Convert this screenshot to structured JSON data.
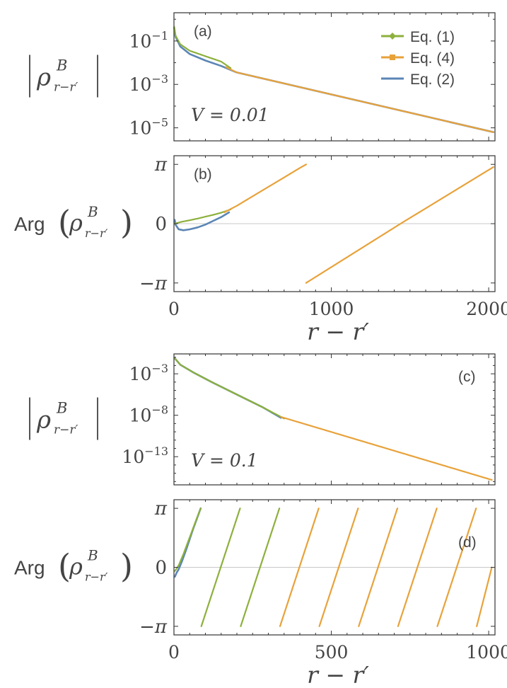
{
  "colors": {
    "eq1": "#8db03c",
    "eq4": "#e8a23a",
    "eq2": "#5b86b5",
    "frame": "#333333",
    "text": "#444444",
    "zero_line": "#c8c8c8"
  },
  "chart_data": [
    {
      "id": "a",
      "panel_label": "(a)",
      "type": "line",
      "ylabel_main": "ρ",
      "ylabel_sup": "B",
      "ylabel_sub": "r−r′",
      "annotation": "V = 0.01",
      "yscale": "log",
      "xlim": [
        0,
        2040
      ],
      "ylog_range": [
        -5.6,
        0.3
      ],
      "ytick_exponents": [
        -1,
        -3,
        -5
      ],
      "ytick_labels": [
        "10−1",
        "10−3",
        "10−5"
      ],
      "legend": {
        "placement": "top-right",
        "entries": [
          "Eq. (1)",
          "Eq. (4)",
          "Eq. (2)"
        ]
      },
      "series": [
        {
          "name": "Eq. (2)",
          "x": [
            2,
            10,
            40,
            100,
            200,
            300,
            400,
            2030
          ],
          "y_log10": [
            -0.4,
            -0.8,
            -1.25,
            -1.6,
            -1.9,
            -2.15,
            -2.45,
            -5.2
          ]
        },
        {
          "name": "Eq. (1)",
          "x": [
            2,
            10,
            40,
            100,
            200,
            300,
            360
          ],
          "y_log10": [
            -0.35,
            -0.75,
            -1.15,
            -1.45,
            -1.7,
            -1.95,
            -2.25
          ]
        },
        {
          "name": "Eq. (4)",
          "x": [
            330,
            400,
            2030
          ],
          "y_log10": [
            -2.2,
            -2.45,
            -5.2
          ]
        }
      ]
    },
    {
      "id": "b",
      "panel_label": "(b)",
      "type": "line",
      "ylabel": "Arg",
      "xlabel": "r − r′",
      "xlim": [
        0,
        2040
      ],
      "ylim": [
        -3.6,
        3.6
      ],
      "xticks": [
        0,
        1000,
        2000
      ],
      "xtick_labels": [
        "0",
        "1000",
        "2000"
      ],
      "ytick_labels": [
        "π",
        "0",
        "−π"
      ],
      "series": [
        {
          "name": "Eq. (2)",
          "x": [
            5,
            10,
            30,
            60,
            100,
            150,
            200,
            250,
            300,
            350
          ],
          "y": [
            0.2,
            -0.05,
            -0.3,
            -0.35,
            -0.3,
            -0.2,
            -0.05,
            0.15,
            0.35,
            0.6
          ]
        },
        {
          "name": "Eq. (1)",
          "x": [
            5,
            50,
            100,
            150,
            200,
            250,
            300,
            360
          ],
          "y": [
            0.0,
            0.1,
            0.18,
            0.27,
            0.37,
            0.47,
            0.58,
            0.75
          ]
        },
        {
          "name": "Eq. (4)",
          "x": [
            320,
            400,
            500,
            600,
            700,
            800,
            840
          ],
          "y": [
            0.6,
            0.95,
            1.45,
            1.95,
            2.45,
            2.95,
            3.14
          ]
        },
        {
          "name": "Eq. (4)",
          "x": [
            840,
            1440,
            2030
          ],
          "y": [
            -3.14,
            0.0,
            3.0
          ]
        }
      ]
    },
    {
      "id": "c",
      "panel_label": "(c)",
      "type": "line",
      "ylabel_main": "ρ",
      "ylabel_sup": "B",
      "ylabel_sub": "r−r′",
      "annotation": "V = 0.1",
      "yscale": "log",
      "xlim": [
        0,
        1020
      ],
      "ylog_range": [
        -16.4,
        -0.6
      ],
      "ytick_exponents": [
        -3,
        -8,
        -13
      ],
      "ytick_labels": [
        "10−3",
        "10−8",
        "10−13"
      ],
      "series": [
        {
          "name": "Eq. (2)",
          "x": [
            2,
            20,
            60,
            120,
            200,
            280,
            340
          ],
          "y_log10": [
            -1.1,
            -1.9,
            -2.8,
            -4.0,
            -5.5,
            -7.0,
            -8.3
          ]
        },
        {
          "name": "Eq. (1)",
          "x": [
            2,
            20,
            60,
            120,
            200,
            280,
            350
          ],
          "y_log10": [
            -1.1,
            -1.9,
            -2.8,
            -4.0,
            -5.5,
            -7.0,
            -8.4
          ]
        },
        {
          "name": "Eq. (4)",
          "x": [
            340,
            1010
          ],
          "y_log10": [
            -8.2,
            -15.8
          ]
        }
      ]
    },
    {
      "id": "d",
      "panel_label": "(d)",
      "type": "line",
      "ylabel": "Arg",
      "xlabel": "r − r′",
      "xlim": [
        0,
        1020
      ],
      "ylim": [
        -3.6,
        3.6
      ],
      "xticks": [
        0,
        500,
        1000
      ],
      "xtick_labels": [
        "0",
        "500",
        "1000"
      ],
      "ytick_labels": [
        "π",
        "0",
        "−π"
      ],
      "series": [
        {
          "name": "Eq. (2)",
          "x": [
            3,
            8,
            15,
            25,
            40,
            60,
            85
          ],
          "y": [
            -0.5,
            -0.3,
            -0.1,
            0.3,
            1.0,
            2.0,
            3.14
          ]
        },
        {
          "name": "Eq. (1)",
          "x": [
            3,
            15,
            30,
            50,
            70,
            85
          ],
          "y": [
            -0.2,
            0.1,
            0.7,
            1.6,
            2.5,
            3.14
          ]
        },
        {
          "name": "Eq. (1)",
          "x": [
            87,
            210
          ],
          "y": [
            -3.14,
            3.14
          ]
        },
        {
          "name": "Eq. (1)",
          "x": [
            212,
            335
          ],
          "y": [
            -3.14,
            3.14
          ]
        },
        {
          "name": "Eq. (4)",
          "x": [
            337,
            460
          ],
          "y": [
            -3.14,
            3.14
          ]
        },
        {
          "name": "Eq. (4)",
          "x": [
            462,
            585
          ],
          "y": [
            -3.14,
            3.14
          ]
        },
        {
          "name": "Eq. (4)",
          "x": [
            587,
            710
          ],
          "y": [
            -3.14,
            3.14
          ]
        },
        {
          "name": "Eq. (4)",
          "x": [
            712,
            835
          ],
          "y": [
            -3.14,
            3.14
          ]
        },
        {
          "name": "Eq. (4)",
          "x": [
            837,
            960
          ],
          "y": [
            -3.14,
            3.14
          ]
        },
        {
          "name": "Eq. (4)",
          "x": [
            962,
            1010
          ],
          "y": [
            -3.14,
            0.0
          ]
        }
      ]
    }
  ]
}
